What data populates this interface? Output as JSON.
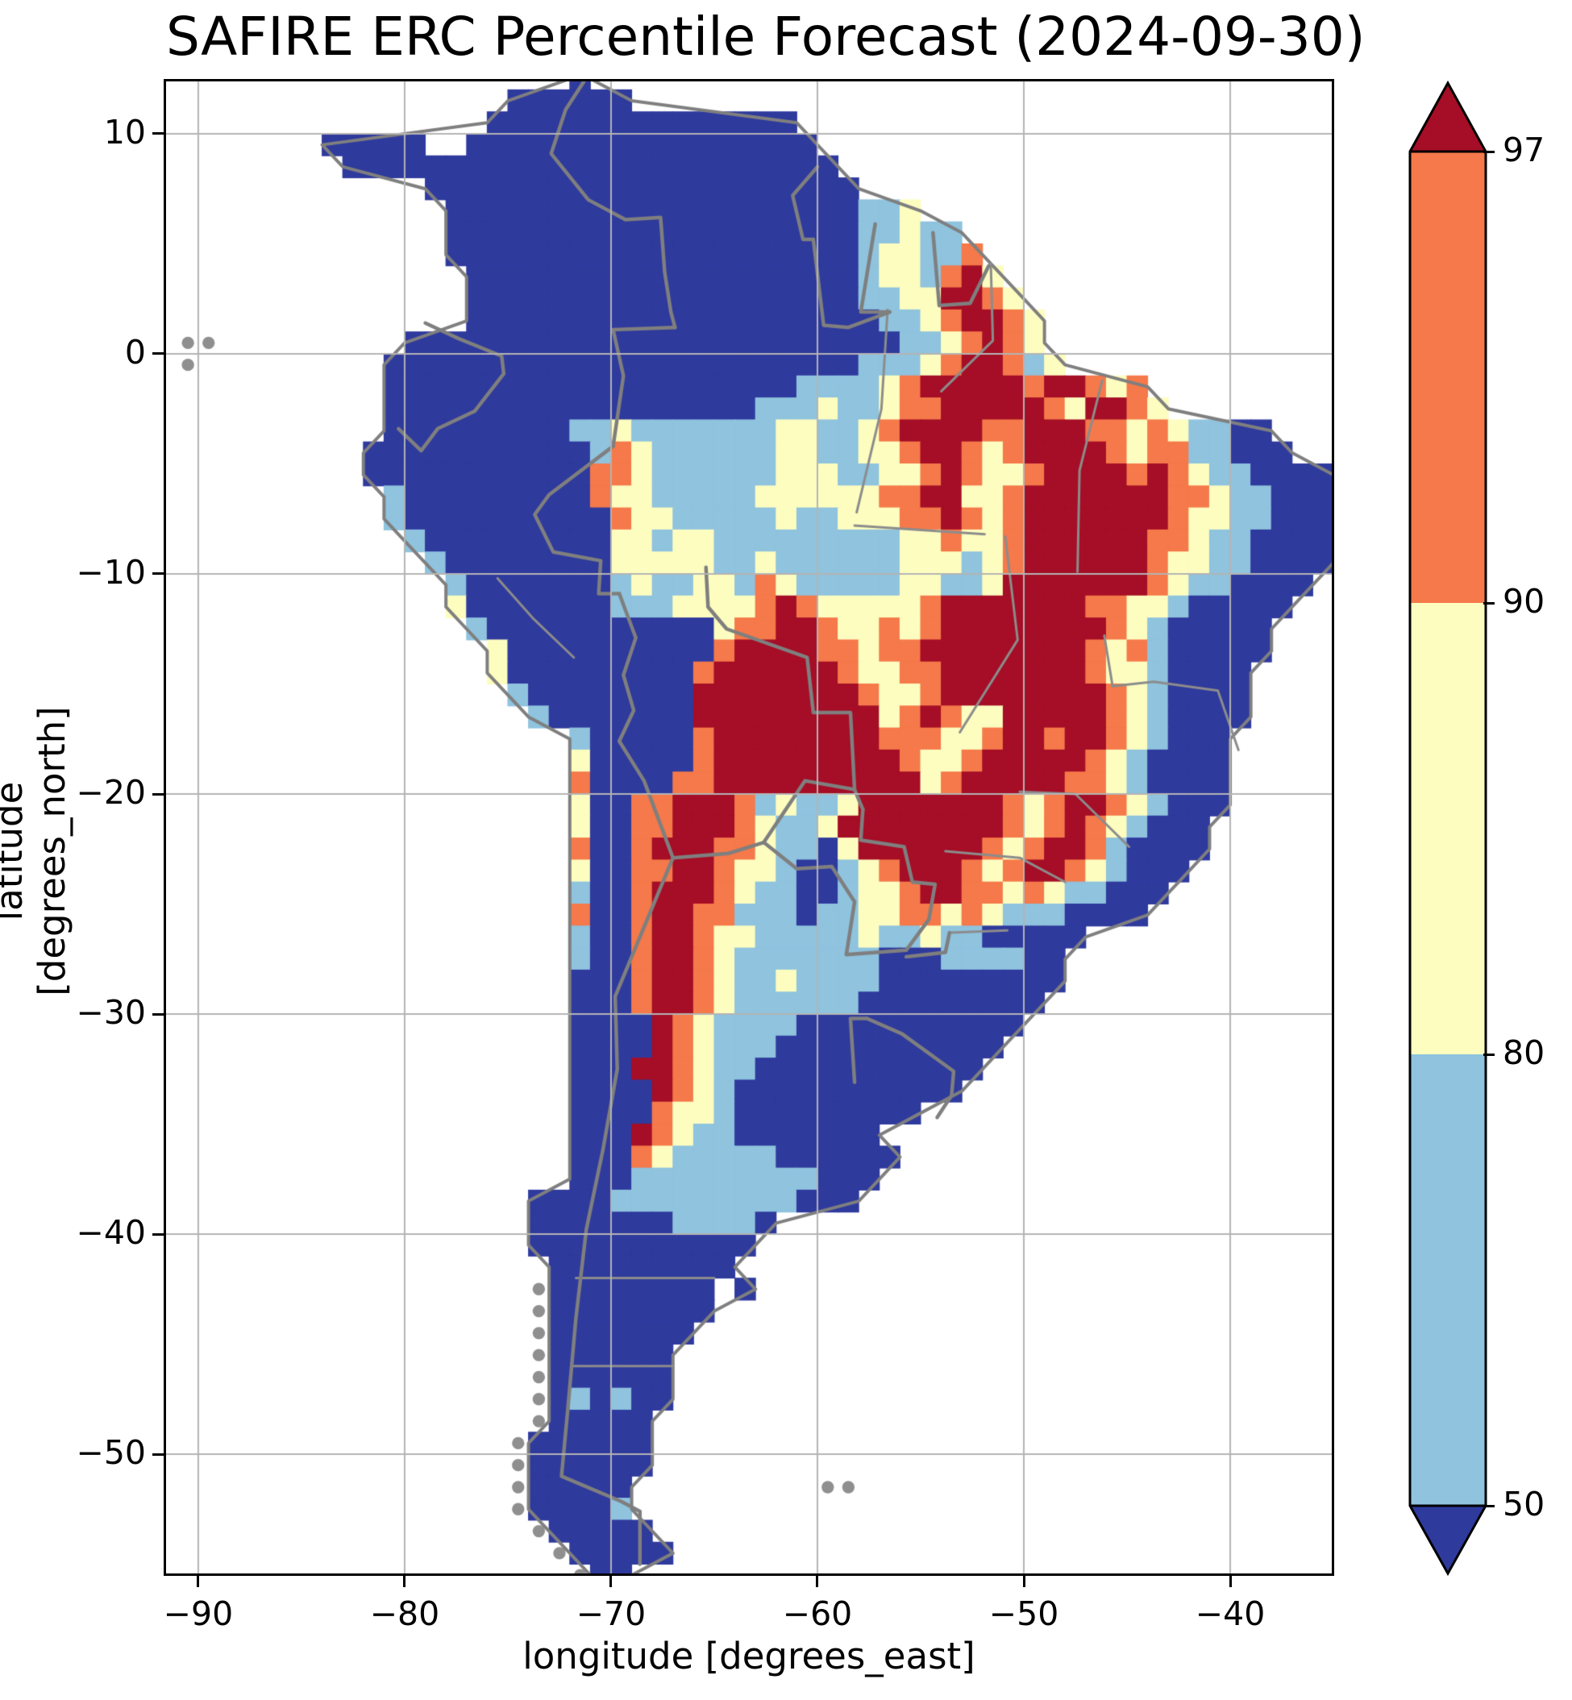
{
  "title": "SAFIRE ERC Percentile Forecast (2024-09-30)",
  "axes": {
    "xlabel": "longitude [degrees_east]",
    "ylabel": "latitude [degrees_north]",
    "x_tick_values": [
      -90,
      -80,
      -70,
      -60,
      -50,
      -40
    ],
    "x_tick_labels": [
      "−90",
      "−80",
      "−70",
      "−60",
      "−50",
      "−40"
    ],
    "y_tick_values": [
      10,
      0,
      -10,
      -20,
      -30,
      -40,
      -50
    ],
    "y_tick_labels": [
      "10",
      "0",
      "−10",
      "−20",
      "−30",
      "−40",
      "−50"
    ],
    "grid": true,
    "grid_color": "#b4b4b4",
    "frame_color": "#000000"
  },
  "colorbar": {
    "tick_values": [
      97,
      90,
      80,
      50
    ],
    "tick_labels": [
      "97",
      "90",
      "80",
      "50"
    ],
    "segment_colors_top_to_bottom": [
      "#f5794a",
      "#fdfdc0",
      "#8fc3de"
    ],
    "over_color": "#a50e26",
    "under_color": "#2f3a9d",
    "outline_color": "#000000"
  },
  "chart_data": {
    "type": "heatmap",
    "title": "SAFIRE ERC Percentile Forecast (2024-09-30)",
    "xlabel": "longitude [degrees_east]",
    "ylabel": "latitude [degrees_north]",
    "xlim": [
      -91.56,
      -35.08
    ],
    "ylim": [
      -55.42,
      12.38
    ],
    "legend_position": "right-colorbar",
    "levels": [
      50,
      80,
      90,
      97
    ],
    "palette": {
      "B": "#2f3a9d",
      "b": "#8fc3de",
      "y": "#fdfdc0",
      "o": "#f5794a",
      "r": "#a50e26",
      "g": "#8f8f8f",
      ".": "none"
    },
    "palette_meaning": {
      "B": "below 50th percentile",
      "b": "50-80th percentile",
      "y": "80-90th percentile",
      "o": "90-97th percentile",
      "r": "above 97th percentile",
      "g": "no-data island (gray outline)"
    },
    "grid_extent": {
      "lon_west": -92,
      "lon_cell_deg": 1,
      "lat_north": 13,
      "lat_cell_deg": 1,
      "cols": 58,
      "rows": 69
    },
    "grid_rows": [
      "....................B.....................................",
      ".................BBBBBB...................................",
      "................BBBBBBBBBBBBBBB...........................",
      "........BBBBB..BBBBBBBBBBBBBBBBB..........................",
      ".........BBBBBBBBBBBBBBBBBBBBBBBB.........................",
      ".............BBBBBBBBBBBBBBBBBBBBB........................",
      "..............BBBBBBBBBBBBBBBBBBBBbby.....................",
      "..............BBBBBBBBBBBBBBBBBBBBbbybb...................",
      "..............BBBBBBBBBBBBBBBBBBBBbyybbo..................",
      "...............BBBBBBBBBBBBBBBBBBBbyybory.................",
      "...............BBBBBBBBBBBBBBBBBBBbbyyrroy................",
      "...............BBBBBBBBBBBBBBBBBBBBbbyorroy...............",
      ".gg.........BBBBBBBBBBBBBBBBBBBBBBBBbbyoroy...............",
      ".g.........BBBBBBBBBBBBBBBBBBBBBBBbbbyorroby..............",
      "...........BBBBBBBBBBBBBBBBBBBBbbbbyorrrrrorroyo..........",
      "...........BBBBBBBBBBBBBBBBBBbbbybbyoorrrrroyrroy.........",
      "...........BBBBBBBBBbbybbbbbbbyybbyorrrroorrrooyoybbBB....",
      "..........BBBBBBBBBBBboybbbbbbyybbyyorroyorrrroyoobbBBB...",
      "..........BBBBBBBBBBBooybbbbbbyyybbyyoroyyorrrroroybbBBBB.",
      "...........bBBBBBBBBBoyybbbbbyyyyyyoorryyorrrrrrrooybbBBB.",
      "...........bBBBBBBBBBBoyybbbbbybbyyyooroyorrrrrrroyybbBBBB",
      "............bBBBBBBBBByybyybbbbbbbbbyyoyyorrrrrrooybbBBBB.",
      ".............bBBBBBBBByyyyybbybbbbbbyyybyorrrrrroyybbBBBB.",
      "..............bBBBBBBBbybbyyboybbbbbyybbyrrrrrrroybbBBBB..",
      "..............yBBBBBBBbbbyyyyoroyyyyyorrrrrrrooyybBBBBB...",
      "...............bBBBBBBBBBBByoorroyyoyorrrrrrrroybBBBBB....",
      "................yBBBBBBBBBBorrrrooyoorrrrrrrroyobBBBBB....",
      "................yBBBBBBBBBorrrrrroyyoorrrrrrroyybBBBB.....",
      ".................bBBBBBBBBrrrrrrrroyyorrrrrrrroybBBBB.....",
      "..................bBBBBBBBrrrrrrrrryoroyyrrrrroybBBBB.....",
      "....................bBBBBBorrrrrrrroooyyorrorroybBBB......",
      "....................yBBBBBorrrrrrrrroyyorrrrroybBBBB......",
      "....................oBBBBoorrrrrrrrrryorrrrrooybBBBB......",
      "....................yBBoorrrobybbyrrrrrrroyorroybBBB......",
      "....................yBBoorrroybbyrrrrrrrroyoroybBBB.......",
      "....................oBBorrrooybbByrrrrrroyorrobBBBB.......",
      "....................yBBoorroyybBBbyorrroyorroybBBB........",
      "....................bBBorrroybbBBbyyorrooyoybbBBB.........",
      "....................oBBorroovbbBbbyyooyoybbbBBBB..........",
      "....................bBBorroyybbbbbybbybbBBBBB.............",
      "....................bBBorroybbbbbbbBBBbbbbBB..............",
      "....................BBBorroybbybbbbBBBBBBBBB..............",
      "....................BBBorroybbbbbbBBBBBBBBB...............",
      "....................BBBBroybbbbBBBBBBBBBBB................",
      "....................BBBBroybbbBBBBBBBBBBB.................",
      "....................BBBrroybbBBBBBBBBBBB..................",
      "....................BBBBroybBBBBBBBBBBB...................",
      "....................BBBBoyybBBBBBBBBB.....................",
      "....................BBBroybbBBBBBBB.......................",
      "....................BBBoybbbbbBBBBBB......................",
      "....................BBBbbbbbbbbbBBB.......................",
      "..................BBBBbbbbbbbbbBBB........................",
      "..................BBBBBBBbbbbB............................",
      "..................BBBBBBBBBBB.............................",
      "...................BBBBBBBBB..............................",
      "..................gBBBBBBBB.B.............................",
      "..................gBBBBBBBB...............................",
      "..................gBBBBBBB................................",
      "..................gBBBBBB.................................",
      "..................gBBBBBB.................................",
      "..................gBbBbBB.................................",
      "..................gBBBBB..................................",
      ".................gBBBBBB..................................",
      ".................gBBBBBB..................................",
      ".................gBBBBB.........gg........................",
      ".................gBBBBb...................................",
      "..................gBBBBB..................................",
      "...................gBBBBB.................................",
      "....................gBB..................................."
    ],
    "border_color": "#7f7f7f",
    "admin_border_color": "#8c8c8c",
    "country_borders": [
      [
        [
          -71.3,
          12.4
        ],
        [
          -72.2,
          11.1
        ],
        [
          -72.9,
          9.1
        ],
        [
          -71.1,
          7.0
        ],
        [
          -69.3,
          6.1
        ],
        [
          -67.6,
          6.2
        ],
        [
          -67.4,
          3.7
        ],
        [
          -67.1,
          1.9
        ],
        [
          -66.9,
          1.2
        ]
      ],
      [
        [
          -66.9,
          1.2
        ],
        [
          -69.9,
          1.1
        ],
        [
          -69.4,
          -1.0
        ],
        [
          -69.9,
          -4.2
        ]
      ],
      [
        [
          -69.9,
          -4.2
        ],
        [
          -73.0,
          -6.4
        ],
        [
          -73.7,
          -7.3
        ],
        [
          -72.8,
          -9.0
        ],
        [
          -70.5,
          -9.4
        ],
        [
          -70.6,
          -10.9
        ],
        [
          -69.6,
          -10.9
        ]
      ],
      [
        [
          -69.6,
          -10.9
        ],
        [
          -68.8,
          -12.9
        ],
        [
          -69.4,
          -14.6
        ],
        [
          -68.9,
          -16.2
        ],
        [
          -69.6,
          -17.6
        ]
      ],
      [
        [
          -79.0,
          1.4
        ],
        [
          -77.4,
          0.7
        ],
        [
          -75.3,
          -0.1
        ],
        [
          -75.2,
          -0.9
        ]
      ],
      [
        [
          -80.3,
          -3.4
        ],
        [
          -79.2,
          -4.4
        ],
        [
          -78.4,
          -3.4
        ],
        [
          -76.6,
          -2.6
        ],
        [
          -75.2,
          -0.9
        ]
      ],
      [
        [
          -65.4,
          -9.7
        ],
        [
          -65.3,
          -11.5
        ],
        [
          -64.4,
          -12.5
        ],
        [
          -60.5,
          -13.8
        ],
        [
          -60.2,
          -16.3
        ],
        [
          -58.4,
          -16.3
        ],
        [
          -58.2,
          -19.8
        ],
        [
          -57.8,
          -20.7
        ]
      ],
      [
        [
          -69.6,
          -17.6
        ],
        [
          -68.4,
          -19.4
        ],
        [
          -67.0,
          -22.9
        ],
        [
          -68.6,
          -26.5
        ],
        [
          -69.8,
          -29.2
        ],
        [
          -69.7,
          -32.5
        ],
        [
          -70.4,
          -36.2
        ],
        [
          -71.2,
          -39.8
        ],
        [
          -71.7,
          -43.8
        ],
        [
          -72.1,
          -48.0
        ],
        [
          -72.4,
          -51.0
        ],
        [
          -69.5,
          -52.15
        ],
        [
          -68.6,
          -52.6
        ],
        [
          -68.6,
          -55.0
        ]
      ],
      [
        [
          -67.0,
          -22.9
        ],
        [
          -64.3,
          -22.7
        ],
        [
          -62.6,
          -22.2
        ]
      ],
      [
        [
          -62.6,
          -22.2
        ],
        [
          -60.6,
          -19.4
        ],
        [
          -58.2,
          -19.8
        ]
      ],
      [
        [
          -57.8,
          -20.7
        ],
        [
          -57.9,
          -22.1
        ],
        [
          -55.8,
          -22.4
        ],
        [
          -55.4,
          -24.0
        ],
        [
          -54.3,
          -24.1
        ],
        [
          -54.6,
          -25.7
        ],
        [
          -55.7,
          -27.1
        ],
        [
          -58.6,
          -27.3
        ],
        [
          -58.2,
          -24.9
        ],
        [
          -59.3,
          -23.3
        ],
        [
          -61.0,
          -23.4
        ],
        [
          -62.6,
          -22.2
        ]
      ],
      [
        [
          -53.6,
          -26.3
        ],
        [
          -53.8,
          -27.2
        ],
        [
          -55.7,
          -27.4
        ]
      ],
      [
        [
          -57.6,
          -30.2
        ],
        [
          -55.9,
          -30.9
        ],
        [
          -53.4,
          -32.6
        ],
        [
          -53.5,
          -33.7
        ],
        [
          -54.2,
          -34.7
        ]
      ],
      [
        [
          -58.2,
          -33.1
        ],
        [
          -58.4,
          -30.2
        ],
        [
          -57.6,
          -30.2
        ]
      ],
      [
        [
          -60.0,
          8.5
        ],
        [
          -61.2,
          7.2
        ],
        [
          -60.7,
          5.2
        ],
        [
          -60.2,
          5.2
        ]
      ],
      [
        [
          -60.2,
          5.2
        ],
        [
          -59.7,
          1.3
        ],
        [
          -58.5,
          1.2
        ],
        [
          -56.5,
          1.9
        ]
      ],
      [
        [
          -57.2,
          5.9
        ],
        [
          -57.9,
          1.9
        ],
        [
          -56.5,
          1.9
        ]
      ],
      [
        [
          -54.4,
          5.5
        ],
        [
          -54.1,
          2.2
        ]
      ],
      [
        [
          -54.1,
          2.2
        ],
        [
          -52.6,
          2.3
        ],
        [
          -51.7,
          4.0
        ]
      ]
    ],
    "admin_borders": [
      [
        [
          -56.6,
          2.0
        ],
        [
          -56.9,
          -2.5
        ],
        [
          -58.1,
          -7.2
        ]
      ],
      [
        [
          -51.6,
          4.1
        ],
        [
          -51.5,
          0.6
        ],
        [
          -54.0,
          -1.7
        ]
      ],
      [
        [
          -46.2,
          -1.2
        ],
        [
          -47.3,
          -5.3
        ],
        [
          -47.4,
          -9.9
        ]
      ],
      [
        [
          -58.2,
          -7.8
        ],
        [
          -51.9,
          -8.2
        ]
      ],
      [
        [
          -50.9,
          -8.3
        ],
        [
          -50.3,
          -13.0
        ],
        [
          -53.1,
          -17.2
        ]
      ],
      [
        [
          -46.1,
          -12.8
        ],
        [
          -45.7,
          -15.1
        ],
        [
          -43.7,
          -14.9
        ],
        [
          -40.6,
          -15.3
        ],
        [
          -39.6,
          -18.0
        ]
      ],
      [
        [
          -50.2,
          -19.9
        ],
        [
          -47.5,
          -20.0
        ],
        [
          -44.9,
          -22.4
        ]
      ],
      [
        [
          -53.8,
          -22.6
        ],
        [
          -50.2,
          -22.9
        ],
        [
          -48.0,
          -24.0
        ]
      ],
      [
        [
          -50.8,
          -26.2
        ],
        [
          -53.5,
          -26.3
        ]
      ],
      [
        [
          -71.7,
          -42.0
        ],
        [
          -65.0,
          -42.0
        ]
      ],
      [
        [
          -71.9,
          -46.0
        ],
        [
          -67.0,
          -46.0
        ]
      ],
      [
        [
          -75.5,
          -10.2
        ],
        [
          -73.8,
          -12.0
        ],
        [
          -71.8,
          -13.8
        ]
      ]
    ]
  }
}
